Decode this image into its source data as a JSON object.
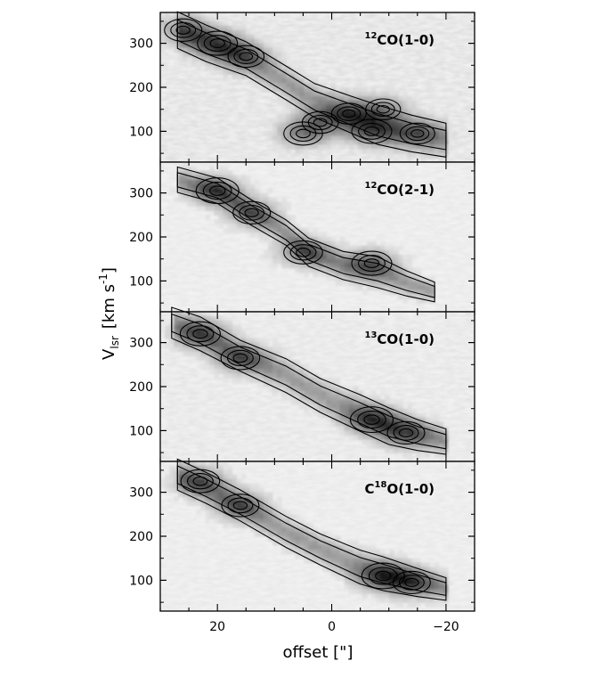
{
  "chart_data": {
    "type": "heatmap",
    "description": "Four stacked position-velocity diagrams (grayscale with contours) sharing the x-axis",
    "xlabel": "offset [\"]",
    "ylabel": "V",
    "ylabel_sub": "lsr",
    "ylabel_units": "[km s",
    "ylabel_exp": "-1",
    "ylabel_close": "]",
    "xlim": [
      30,
      -25
    ],
    "ylim": [
      30,
      370
    ],
    "x_ticks": [
      20,
      0,
      -20
    ],
    "x_tick_labels": [
      "20",
      "0",
      "−20"
    ],
    "y_ticks": [
      100,
      200,
      300
    ],
    "y_tick_labels": [
      "100",
      "200",
      "300"
    ],
    "grid": false,
    "panels": [
      {
        "label_sup": "12",
        "label_main": "CO(1-0)",
        "ridge": [
          [
            27,
            330,
            26
          ],
          [
            22,
            300,
            26
          ],
          [
            15,
            265,
            24
          ],
          [
            8,
            210,
            24
          ],
          [
            3,
            170,
            24
          ],
          [
            -3,
            140,
            26
          ],
          [
            -8,
            115,
            28
          ],
          [
            -14,
            95,
            26
          ],
          [
            -20,
            80,
            24
          ]
        ],
        "peaks": [
          [
            20,
            300,
            0.9
          ],
          [
            26,
            330,
            0.8
          ],
          [
            15,
            270,
            0.75
          ],
          [
            5,
            95,
            0.85
          ],
          [
            -7,
            100,
            0.9
          ],
          [
            -3,
            140,
            0.7
          ],
          [
            -9,
            150,
            0.7
          ],
          [
            -15,
            95,
            0.7
          ],
          [
            2,
            120,
            0.75
          ]
        ],
        "noise": 0.55
      },
      {
        "label_sup": "12",
        "label_main": "CO(2-1)",
        "ridge": [
          [
            27,
            330,
            18
          ],
          [
            20,
            305,
            18
          ],
          [
            14,
            255,
            18
          ],
          [
            8,
            210,
            18
          ],
          [
            4,
            165,
            20
          ],
          [
            -2,
            135,
            20
          ],
          [
            -8,
            120,
            22
          ],
          [
            -13,
            95,
            18
          ],
          [
            -18,
            75,
            14
          ]
        ],
        "peaks": [
          [
            20,
            305,
            1.0
          ],
          [
            14,
            255,
            0.8
          ],
          [
            5,
            165,
            0.85
          ],
          [
            -7,
            140,
            0.9
          ]
        ],
        "noise": 0.3
      },
      {
        "label_sup": "13",
        "label_main": "CO(1-0)",
        "ridge": [
          [
            28,
            345,
            22
          ],
          [
            23,
            320,
            24
          ],
          [
            16,
            270,
            22
          ],
          [
            8,
            225,
            24
          ],
          [
            2,
            180,
            24
          ],
          [
            -5,
            140,
            26
          ],
          [
            -10,
            110,
            26
          ],
          [
            -15,
            90,
            22
          ],
          [
            -20,
            75,
            18
          ]
        ],
        "peaks": [
          [
            23,
            320,
            0.9
          ],
          [
            16,
            265,
            0.85
          ],
          [
            -7,
            125,
            1.0
          ],
          [
            -13,
            95,
            0.8
          ]
        ],
        "noise": 0.4
      },
      {
        "label_pre": "C",
        "label_sup": "18",
        "label_main": "O(1-0)",
        "ridge": [
          [
            27,
            340,
            22
          ],
          [
            22,
            310,
            22
          ],
          [
            16,
            270,
            22
          ],
          [
            8,
            210,
            22
          ],
          [
            2,
            170,
            22
          ],
          [
            -5,
            130,
            24
          ],
          [
            -9,
            115,
            24
          ],
          [
            -15,
            95,
            20
          ],
          [
            -20,
            80,
            16
          ]
        ],
        "peaks": [
          [
            23,
            325,
            0.85
          ],
          [
            16,
            270,
            0.8
          ],
          [
            -9,
            110,
            1.0
          ],
          [
            -14,
            95,
            0.8
          ]
        ],
        "noise": 0.3
      }
    ]
  }
}
